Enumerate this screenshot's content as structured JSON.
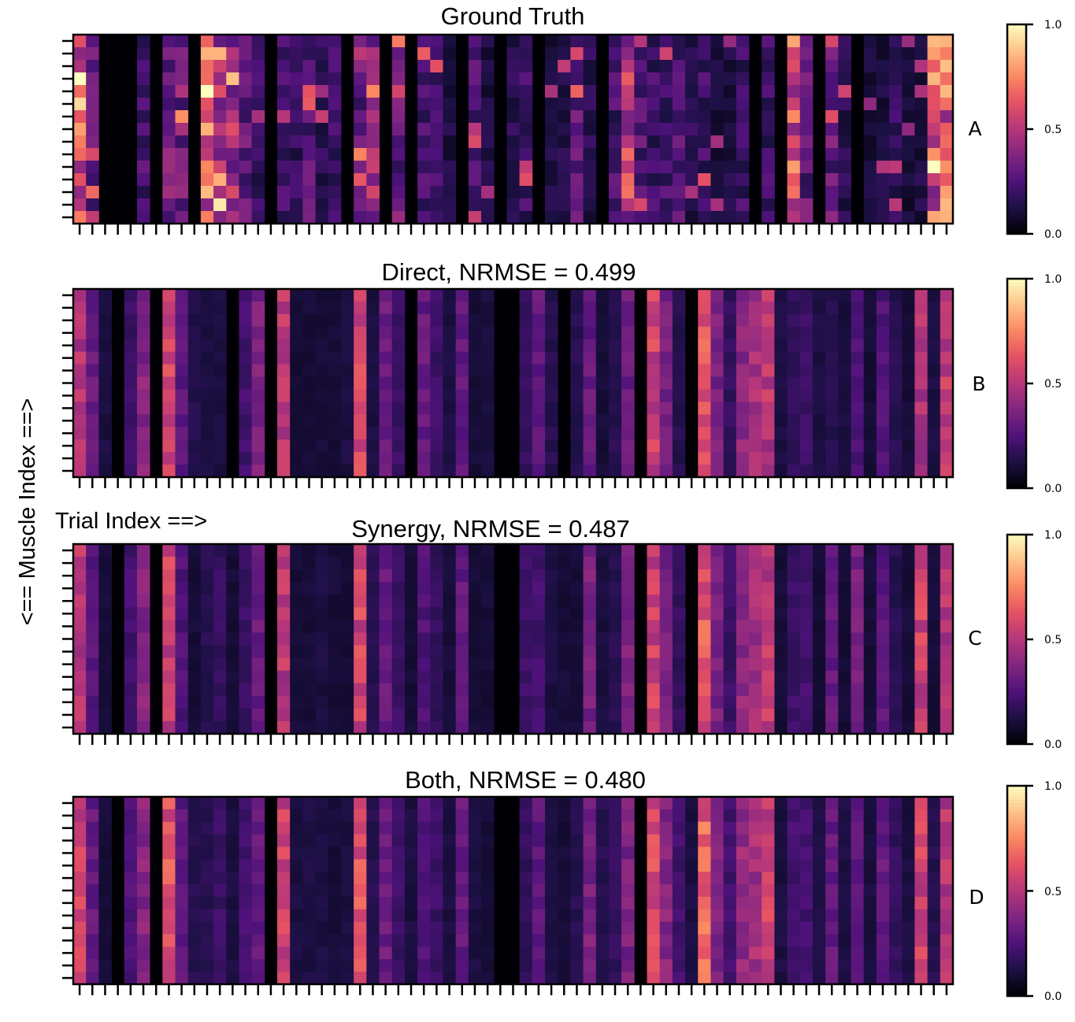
{
  "figure": {
    "ylabel": "<== Muscle Index ==>",
    "xlabel": "Trial Index ==>",
    "colormap": "magma",
    "colormap_stops": [
      "#000004",
      "#1c1044",
      "#4f127b",
      "#812581",
      "#b5367a",
      "#e55064",
      "#fb8761",
      "#fec287",
      "#fcfdbf"
    ]
  },
  "chart_data": [
    {
      "type": "heatmap",
      "panel": "A",
      "title": "Ground Truth",
      "n_rows": 15,
      "n_cols": 69,
      "value_range": [
        0,
        1
      ],
      "colorbar_ticks": [
        "0.0",
        "0.5",
        "1.0"
      ],
      "active_columns": [
        {
          "col": 0,
          "level": 0.72
        },
        {
          "col": 1,
          "level": 0.28
        },
        {
          "col": 5,
          "level": 0.22
        },
        {
          "col": 7,
          "level": 0.32
        },
        {
          "col": 8,
          "level": 0.33
        },
        {
          "col": 10,
          "level": 0.7
        },
        {
          "col": 11,
          "level": 0.45
        },
        {
          "col": 12,
          "level": 0.42
        },
        {
          "col": 13,
          "level": 0.3
        },
        {
          "col": 14,
          "level": 0.18
        },
        {
          "col": 16,
          "level": 0.2
        },
        {
          "col": 17,
          "level": 0.18
        },
        {
          "col": 18,
          "level": 0.25
        },
        {
          "col": 19,
          "level": 0.15
        },
        {
          "col": 20,
          "level": 0.22
        },
        {
          "col": 22,
          "level": 0.28
        },
        {
          "col": 23,
          "level": 0.4
        },
        {
          "col": 25,
          "level": 0.3
        },
        {
          "col": 27,
          "level": 0.22
        },
        {
          "col": 28,
          "level": 0.2
        },
        {
          "col": 29,
          "level": 0.12
        },
        {
          "col": 31,
          "level": 0.25
        },
        {
          "col": 32,
          "level": 0.12
        },
        {
          "col": 34,
          "level": 0.15
        },
        {
          "col": 35,
          "level": 0.2
        },
        {
          "col": 37,
          "level": 0.12
        },
        {
          "col": 38,
          "level": 0.13
        },
        {
          "col": 39,
          "level": 0.3
        },
        {
          "col": 40,
          "level": 0.15
        },
        {
          "col": 42,
          "level": 0.22
        },
        {
          "col": 43,
          "level": 0.5
        },
        {
          "col": 44,
          "level": 0.25
        },
        {
          "col": 45,
          "level": 0.2
        },
        {
          "col": 46,
          "level": 0.22
        },
        {
          "col": 47,
          "level": 0.25
        },
        {
          "col": 48,
          "level": 0.15
        },
        {
          "col": 49,
          "level": 0.2
        },
        {
          "col": 50,
          "level": 0.1
        },
        {
          "col": 51,
          "level": 0.12
        },
        {
          "col": 52,
          "level": 0.2
        },
        {
          "col": 54,
          "level": 0.2
        },
        {
          "col": 56,
          "level": 0.62
        },
        {
          "col": 57,
          "level": 0.28
        },
        {
          "col": 59,
          "level": 0.3
        },
        {
          "col": 60,
          "level": 0.15
        },
        {
          "col": 62,
          "level": 0.1
        },
        {
          "col": 63,
          "level": 0.12
        },
        {
          "col": 64,
          "level": 0.18
        },
        {
          "col": 65,
          "level": 0.1
        },
        {
          "col": 66,
          "level": 0.12
        },
        {
          "col": 67,
          "level": 0.6
        },
        {
          "col": 68,
          "level": 0.62
        }
      ]
    },
    {
      "type": "heatmap",
      "panel": "B",
      "title": "Direct, NRMSE = 0.499",
      "n_rows": 15,
      "n_cols": 69,
      "value_range": [
        0,
        1
      ],
      "colorbar_ticks": [
        "0.0",
        "0.5",
        "1.0"
      ],
      "active_columns": [
        {
          "col": 0,
          "level": 0.48
        },
        {
          "col": 1,
          "level": 0.3
        },
        {
          "col": 2,
          "level": 0.12
        },
        {
          "col": 4,
          "level": 0.2
        },
        {
          "col": 5,
          "level": 0.38
        },
        {
          "col": 7,
          "level": 0.55
        },
        {
          "col": 8,
          "level": 0.28
        },
        {
          "col": 9,
          "level": 0.14
        },
        {
          "col": 10,
          "level": 0.12
        },
        {
          "col": 11,
          "level": 0.12
        },
        {
          "col": 13,
          "level": 0.22
        },
        {
          "col": 14,
          "level": 0.35
        },
        {
          "col": 16,
          "level": 0.5
        },
        {
          "col": 17,
          "level": 0.1
        },
        {
          "col": 18,
          "level": 0.1
        },
        {
          "col": 19,
          "level": 0.1
        },
        {
          "col": 20,
          "level": 0.1
        },
        {
          "col": 21,
          "level": 0.12
        },
        {
          "col": 22,
          "level": 0.58
        },
        {
          "col": 23,
          "level": 0.12
        },
        {
          "col": 24,
          "level": 0.32
        },
        {
          "col": 25,
          "level": 0.2
        },
        {
          "col": 27,
          "level": 0.3
        },
        {
          "col": 28,
          "level": 0.2
        },
        {
          "col": 29,
          "level": 0.12
        },
        {
          "col": 30,
          "level": 0.3
        },
        {
          "col": 31,
          "level": 0.1
        },
        {
          "col": 32,
          "level": 0.12
        },
        {
          "col": 35,
          "level": 0.18
        },
        {
          "col": 36,
          "level": 0.3
        },
        {
          "col": 37,
          "level": 0.15
        },
        {
          "col": 39,
          "level": 0.15
        },
        {
          "col": 40,
          "level": 0.3
        },
        {
          "col": 41,
          "level": 0.1
        },
        {
          "col": 42,
          "level": 0.15
        },
        {
          "col": 43,
          "level": 0.32
        },
        {
          "col": 45,
          "level": 0.55
        },
        {
          "col": 46,
          "level": 0.35
        },
        {
          "col": 47,
          "level": 0.15
        },
        {
          "col": 49,
          "level": 0.62
        },
        {
          "col": 50,
          "level": 0.35
        },
        {
          "col": 51,
          "level": 0.18
        },
        {
          "col": 52,
          "level": 0.4
        },
        {
          "col": 53,
          "level": 0.45
        },
        {
          "col": 54,
          "level": 0.5
        },
        {
          "col": 55,
          "level": 0.12
        },
        {
          "col": 56,
          "level": 0.18
        },
        {
          "col": 57,
          "level": 0.2
        },
        {
          "col": 58,
          "level": 0.12
        },
        {
          "col": 59,
          "level": 0.15
        },
        {
          "col": 60,
          "level": 0.12
        },
        {
          "col": 61,
          "level": 0.25
        },
        {
          "col": 62,
          "level": 0.1
        },
        {
          "col": 63,
          "level": 0.25
        },
        {
          "col": 64,
          "level": 0.15
        },
        {
          "col": 65,
          "level": 0.1
        },
        {
          "col": 66,
          "level": 0.48
        },
        {
          "col": 67,
          "level": 0.12
        },
        {
          "col": 68,
          "level": 0.52
        }
      ]
    },
    {
      "type": "heatmap",
      "panel": "C",
      "title": "Synergy, NRMSE = 0.487",
      "n_rows": 15,
      "n_cols": 69,
      "value_range": [
        0,
        1
      ],
      "colorbar_ticks": [
        "0.0",
        "0.5",
        "1.0"
      ],
      "active_columns": [
        {
          "col": 0,
          "level": 0.5
        },
        {
          "col": 1,
          "level": 0.28
        },
        {
          "col": 2,
          "level": 0.1
        },
        {
          "col": 4,
          "level": 0.22
        },
        {
          "col": 5,
          "level": 0.38
        },
        {
          "col": 7,
          "level": 0.55
        },
        {
          "col": 8,
          "level": 0.25
        },
        {
          "col": 9,
          "level": 0.1
        },
        {
          "col": 10,
          "level": 0.15
        },
        {
          "col": 11,
          "level": 0.18
        },
        {
          "col": 12,
          "level": 0.1
        },
        {
          "col": 13,
          "level": 0.2
        },
        {
          "col": 14,
          "level": 0.32
        },
        {
          "col": 16,
          "level": 0.5
        },
        {
          "col": 17,
          "level": 0.1
        },
        {
          "col": 18,
          "level": 0.1
        },
        {
          "col": 19,
          "level": 0.12
        },
        {
          "col": 20,
          "level": 0.1
        },
        {
          "col": 21,
          "level": 0.1
        },
        {
          "col": 22,
          "level": 0.56
        },
        {
          "col": 23,
          "level": 0.15
        },
        {
          "col": 24,
          "level": 0.3
        },
        {
          "col": 25,
          "level": 0.2
        },
        {
          "col": 26,
          "level": 0.1
        },
        {
          "col": 27,
          "level": 0.25
        },
        {
          "col": 28,
          "level": 0.18
        },
        {
          "col": 29,
          "level": 0.1
        },
        {
          "col": 30,
          "level": 0.3
        },
        {
          "col": 31,
          "level": 0.1
        },
        {
          "col": 32,
          "level": 0.1
        },
        {
          "col": 35,
          "level": 0.2
        },
        {
          "col": 36,
          "level": 0.22
        },
        {
          "col": 37,
          "level": 0.12
        },
        {
          "col": 38,
          "level": 0.1
        },
        {
          "col": 39,
          "level": 0.1
        },
        {
          "col": 40,
          "level": 0.35
        },
        {
          "col": 41,
          "level": 0.12
        },
        {
          "col": 42,
          "level": 0.15
        },
        {
          "col": 43,
          "level": 0.35
        },
        {
          "col": 45,
          "level": 0.55
        },
        {
          "col": 46,
          "level": 0.35
        },
        {
          "col": 47,
          "level": 0.18
        },
        {
          "col": 49,
          "level": 0.62
        },
        {
          "col": 50,
          "level": 0.35
        },
        {
          "col": 51,
          "level": 0.2
        },
        {
          "col": 52,
          "level": 0.4
        },
        {
          "col": 53,
          "level": 0.45
        },
        {
          "col": 54,
          "level": 0.52
        },
        {
          "col": 55,
          "level": 0.1
        },
        {
          "col": 56,
          "level": 0.2
        },
        {
          "col": 57,
          "level": 0.22
        },
        {
          "col": 58,
          "level": 0.1
        },
        {
          "col": 59,
          "level": 0.3
        },
        {
          "col": 60,
          "level": 0.1
        },
        {
          "col": 61,
          "level": 0.35
        },
        {
          "col": 62,
          "level": 0.1
        },
        {
          "col": 63,
          "level": 0.28
        },
        {
          "col": 64,
          "level": 0.15
        },
        {
          "col": 65,
          "level": 0.1
        },
        {
          "col": 66,
          "level": 0.55
        },
        {
          "col": 67,
          "level": 0.1
        },
        {
          "col": 68,
          "level": 0.5
        }
      ]
    },
    {
      "type": "heatmap",
      "panel": "D",
      "title": "Both, NRMSE = 0.480",
      "n_rows": 15,
      "n_cols": 69,
      "value_range": [
        0,
        1
      ],
      "colorbar_ticks": [
        "0.0",
        "0.5",
        "1.0"
      ],
      "active_columns": [
        {
          "col": 0,
          "level": 0.55
        },
        {
          "col": 1,
          "level": 0.3
        },
        {
          "col": 2,
          "level": 0.1
        },
        {
          "col": 4,
          "level": 0.25
        },
        {
          "col": 5,
          "level": 0.38
        },
        {
          "col": 7,
          "level": 0.6
        },
        {
          "col": 8,
          "level": 0.28
        },
        {
          "col": 9,
          "level": 0.15
        },
        {
          "col": 10,
          "level": 0.15
        },
        {
          "col": 11,
          "level": 0.2
        },
        {
          "col": 12,
          "level": 0.12
        },
        {
          "col": 13,
          "level": 0.22
        },
        {
          "col": 14,
          "level": 0.3
        },
        {
          "col": 16,
          "level": 0.55
        },
        {
          "col": 17,
          "level": 0.12
        },
        {
          "col": 18,
          "level": 0.12
        },
        {
          "col": 19,
          "level": 0.12
        },
        {
          "col": 20,
          "level": 0.1
        },
        {
          "col": 21,
          "level": 0.12
        },
        {
          "col": 22,
          "level": 0.6
        },
        {
          "col": 23,
          "level": 0.15
        },
        {
          "col": 24,
          "level": 0.32
        },
        {
          "col": 25,
          "level": 0.2
        },
        {
          "col": 26,
          "level": 0.12
        },
        {
          "col": 27,
          "level": 0.25
        },
        {
          "col": 28,
          "level": 0.2
        },
        {
          "col": 29,
          "level": 0.12
        },
        {
          "col": 30,
          "level": 0.3
        },
        {
          "col": 31,
          "level": 0.12
        },
        {
          "col": 32,
          "level": 0.1
        },
        {
          "col": 35,
          "level": 0.18
        },
        {
          "col": 36,
          "level": 0.28
        },
        {
          "col": 37,
          "level": 0.12
        },
        {
          "col": 38,
          "level": 0.1
        },
        {
          "col": 39,
          "level": 0.15
        },
        {
          "col": 40,
          "level": 0.35
        },
        {
          "col": 41,
          "level": 0.15
        },
        {
          "col": 42,
          "level": 0.18
        },
        {
          "col": 43,
          "level": 0.35
        },
        {
          "col": 45,
          "level": 0.58
        },
        {
          "col": 46,
          "level": 0.38
        },
        {
          "col": 47,
          "level": 0.22
        },
        {
          "col": 48,
          "level": 0.12
        },
        {
          "col": 49,
          "level": 0.65
        },
        {
          "col": 50,
          "level": 0.35
        },
        {
          "col": 51,
          "level": 0.22
        },
        {
          "col": 52,
          "level": 0.42
        },
        {
          "col": 53,
          "level": 0.45
        },
        {
          "col": 54,
          "level": 0.55
        },
        {
          "col": 55,
          "level": 0.12
        },
        {
          "col": 56,
          "level": 0.22
        },
        {
          "col": 57,
          "level": 0.22
        },
        {
          "col": 58,
          "level": 0.12
        },
        {
          "col": 59,
          "level": 0.3
        },
        {
          "col": 60,
          "level": 0.12
        },
        {
          "col": 61,
          "level": 0.3
        },
        {
          "col": 62,
          "level": 0.12
        },
        {
          "col": 63,
          "level": 0.3
        },
        {
          "col": 64,
          "level": 0.18
        },
        {
          "col": 65,
          "level": 0.12
        },
        {
          "col": 66,
          "level": 0.55
        },
        {
          "col": 67,
          "level": 0.15
        },
        {
          "col": 68,
          "level": 0.5
        }
      ]
    }
  ]
}
